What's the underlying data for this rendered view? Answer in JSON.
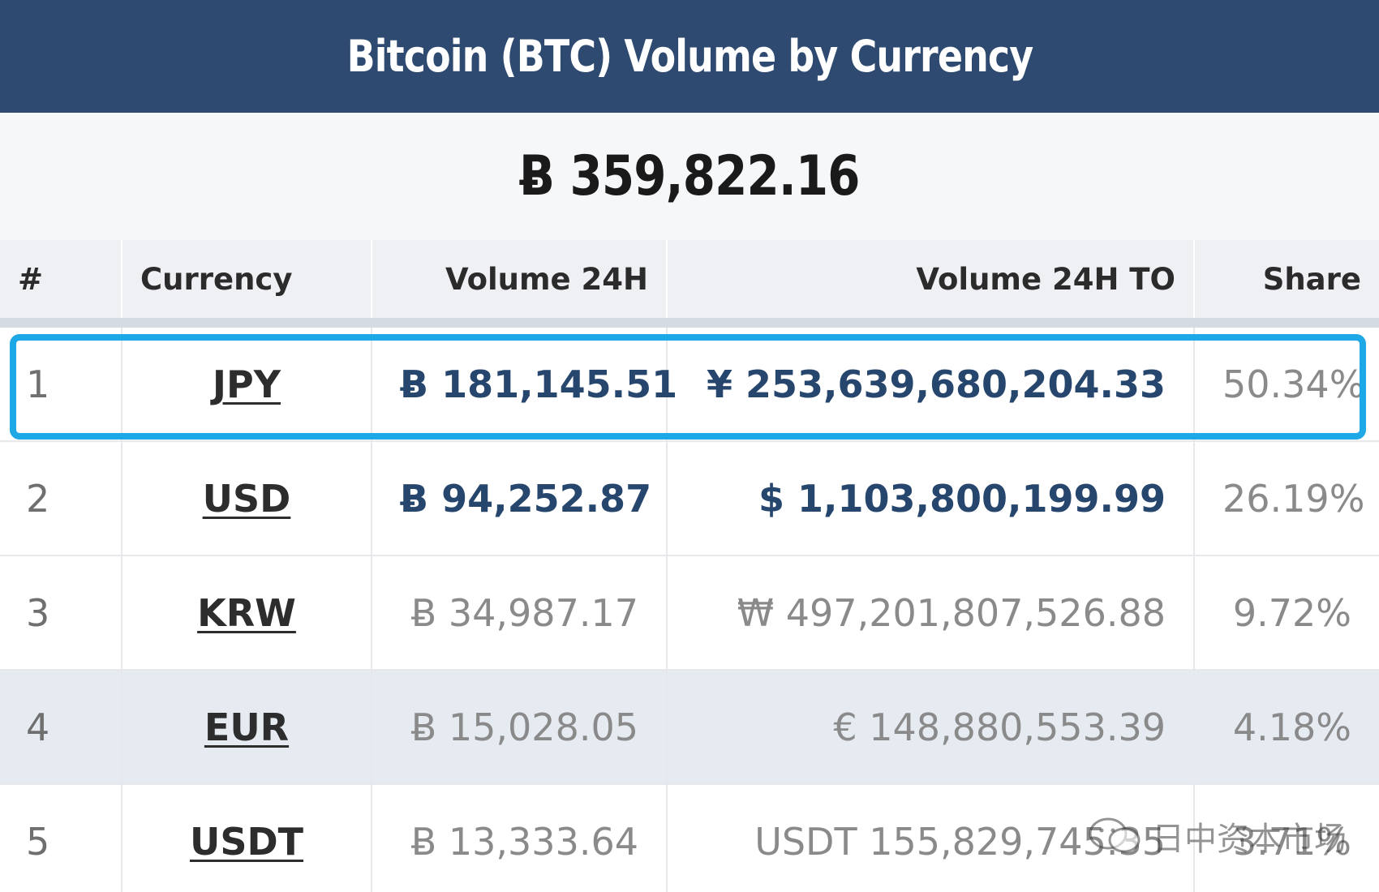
{
  "title": "Bitcoin (BTC) Volume by Currency",
  "total_volume": "Ƀ 359,822.16",
  "table": {
    "headers": [
      "#",
      "Currency",
      "Volume 24H",
      "Volume 24H TO",
      "Share"
    ],
    "rows": [
      {
        "rank": "1",
        "currency": "JPY",
        "volume_24h": "Ƀ 181,145.51",
        "volume_24h_to": "¥ 253,639,680,204.33",
        "share": "50.34%"
      },
      {
        "rank": "2",
        "currency": "USD",
        "volume_24h": "Ƀ 94,252.87",
        "volume_24h_to": "$ 1,103,800,199.99",
        "share": "26.19%"
      },
      {
        "rank": "3",
        "currency": "KRW",
        "volume_24h": "Ƀ 34,987.17",
        "volume_24h_to": "₩ 497,201,807,526.88",
        "share": "9.72%"
      },
      {
        "rank": "4",
        "currency": "EUR",
        "volume_24h": "Ƀ 15,028.05",
        "volume_24h_to": "€ 148,880,553.39",
        "share": "4.18%"
      },
      {
        "rank": "5",
        "currency": "USDT",
        "volume_24h": "Ƀ 13,333.64",
        "volume_24h_to": "USDT 155,829,745.35",
        "share": "3.71%"
      }
    ]
  },
  "colors": {
    "header_bg": "#2e4a70",
    "highlight": "#1ea8e6",
    "strong_value": "#26466e"
  },
  "watermark": {
    "text": "日中资本市场",
    "icon": "wechat-icon"
  }
}
